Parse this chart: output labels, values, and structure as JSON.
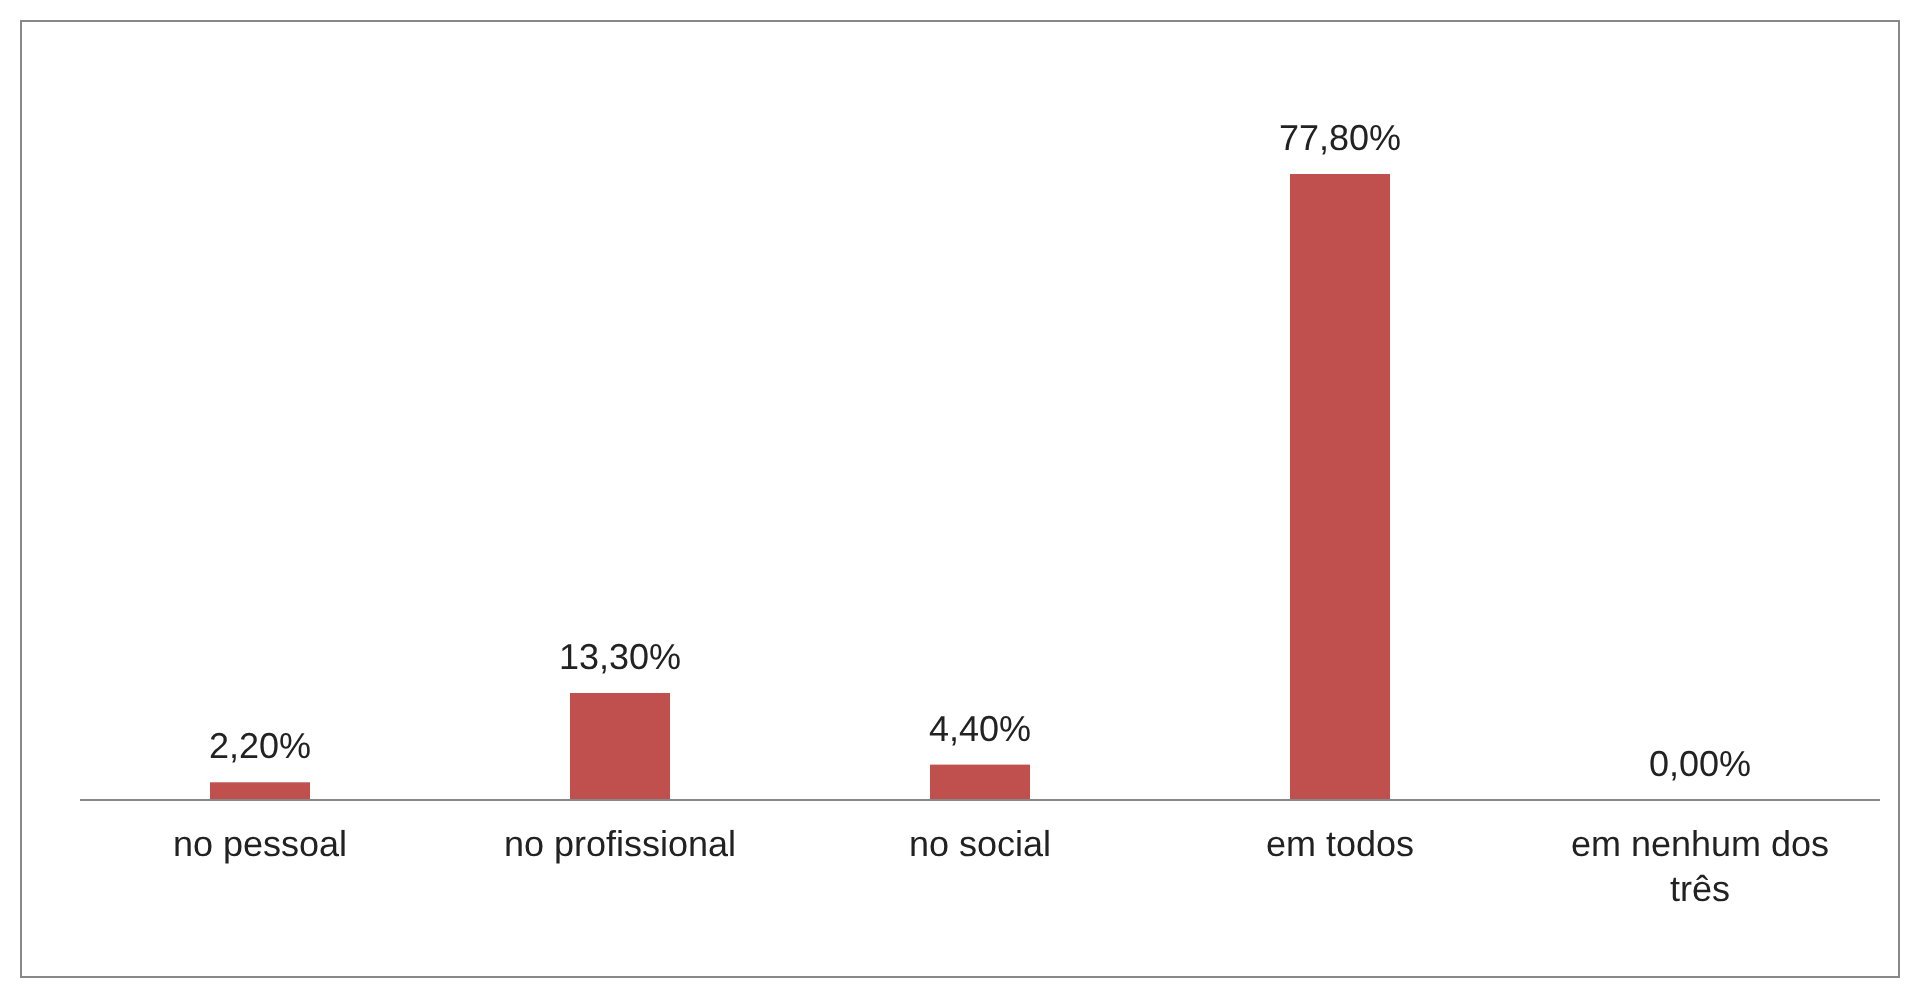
{
  "chart_data": {
    "type": "bar",
    "categories": [
      "no pessoal",
      "no profissional",
      "no social",
      "em todos",
      "em nenhum dos três"
    ],
    "values": [
      2.2,
      13.3,
      4.4,
      77.8,
      0
    ],
    "value_labels": [
      "2,20%",
      "13,30%",
      "4,40%",
      "77,80%",
      "0,00%"
    ],
    "color": "#c0504d"
  }
}
